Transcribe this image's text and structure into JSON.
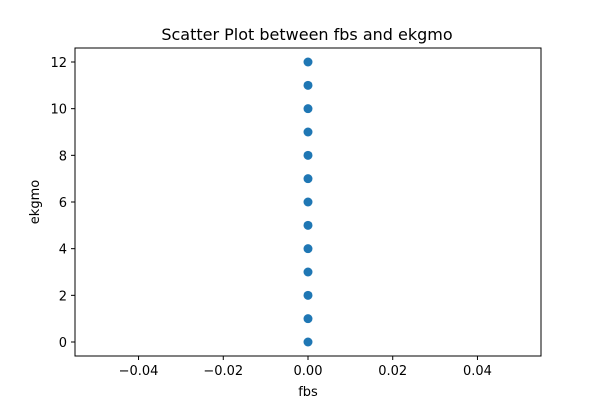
{
  "chart_data": {
    "type": "scatter",
    "title": "Scatter Plot between fbs and ekgmo",
    "xlabel": "fbs",
    "ylabel": "ekgmo",
    "xlim": [
      -0.055,
      0.055
    ],
    "ylim": [
      -0.6,
      12.6
    ],
    "xticks": [
      -0.04,
      -0.02,
      0.0,
      0.02,
      0.04
    ],
    "xtick_labels": [
      "−0.04",
      "−0.02",
      "0.00",
      "0.02",
      "0.04"
    ],
    "yticks": [
      0,
      2,
      4,
      6,
      8,
      10,
      12
    ],
    "ytick_labels": [
      "0",
      "2",
      "4",
      "6",
      "8",
      "10",
      "12"
    ],
    "grid": false,
    "series": [
      {
        "color": "#1f77b4",
        "x": [
          0,
          0,
          0,
          0,
          0,
          0,
          0,
          0,
          0,
          0,
          0,
          0,
          0
        ],
        "y": [
          0,
          1,
          2,
          3,
          4,
          5,
          6,
          7,
          8,
          9,
          10,
          11,
          12
        ]
      }
    ]
  }
}
